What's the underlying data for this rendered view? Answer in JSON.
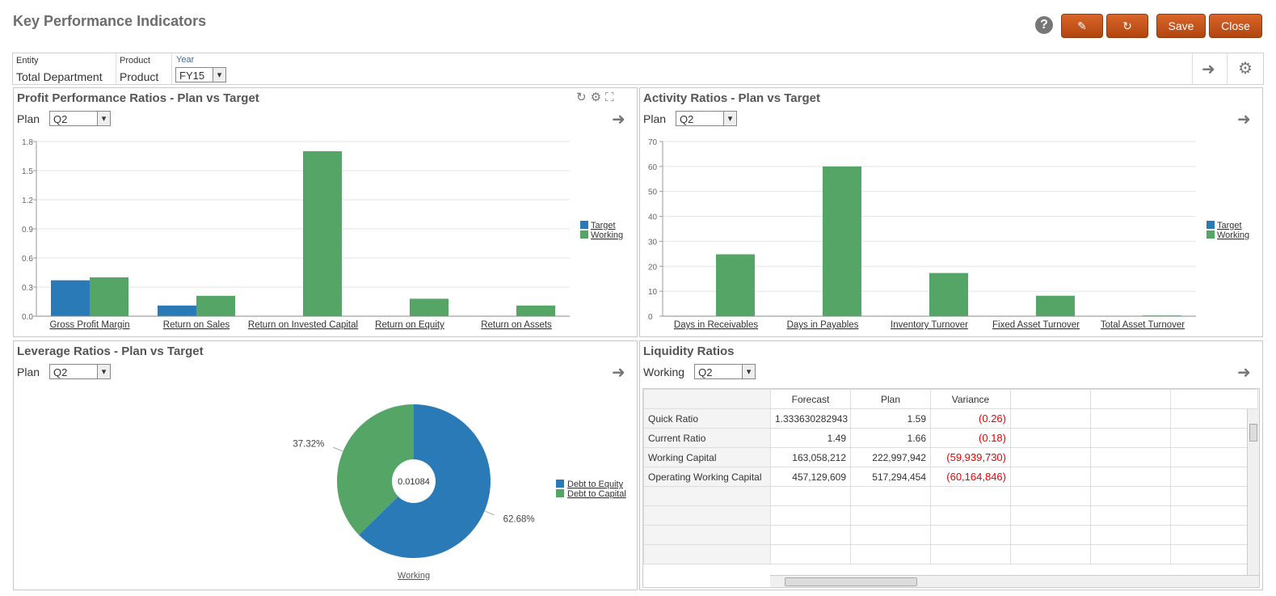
{
  "header": {
    "title": "Key Performance Indicators",
    "buttons": [
      "Save",
      "Close"
    ]
  },
  "pov": [
    {
      "label": "Entity",
      "value": "Total Department"
    },
    {
      "label": "Product",
      "value": "Product"
    },
    {
      "label": "Year",
      "value": "FY15"
    }
  ],
  "chart_data": [
    {
      "type": "bar",
      "title": "Profit Performance Ratios - Plan vs Target",
      "selector_label": "Plan",
      "selector_value": "Q2",
      "categories": [
        "Gross Profit Margin",
        "Return on Sales",
        "Return on Invested Capital",
        "Return on Equity",
        "Return on Assets"
      ],
      "series": [
        {
          "name": "Target",
          "color": "#2a7ab8",
          "values": [
            0.37,
            0.11,
            null,
            null,
            null
          ]
        },
        {
          "name": "Working",
          "color": "#55a666",
          "values": [
            0.4,
            0.21,
            1.7,
            0.18,
            0.11
          ]
        }
      ],
      "ylim": [
        0,
        1.8
      ],
      "yticks": [
        {
          "value": 0,
          "label": "0.0"
        },
        0.3,
        0.6,
        0.9,
        1.2,
        1.5,
        1.8
      ],
      "grid": true
    },
    {
      "type": "bar",
      "title": "Activity Ratios - Plan vs Target",
      "selector_label": "Plan",
      "selector_value": "Q2",
      "categories": [
        "Days in Receivables",
        "Days in Payables",
        "Inventory Turnover",
        "Fixed Asset Turnover",
        "Total Asset Turnover"
      ],
      "series": [
        {
          "name": "Target",
          "color": "#2a7ab8",
          "values": [
            null,
            null,
            null,
            null,
            null
          ]
        },
        {
          "name": "Working",
          "color": "#55a666",
          "values": [
            24.8,
            60,
            17.3,
            8.2,
            0.3
          ]
        }
      ],
      "ylim": [
        0,
        70
      ],
      "yticks": [
        0,
        10,
        20,
        30,
        40,
        50,
        60,
        70
      ],
      "grid": true
    },
    {
      "type": "pie",
      "title": "Leverage Ratios - Plan vs Target",
      "selector_label": "Plan",
      "selector_value": "Q2",
      "categories": [
        "Debt to Equity",
        "Debt to Capital"
      ],
      "values": [
        62.68,
        37.32
      ],
      "value_labels": [
        "62.68%",
        "37.32%"
      ],
      "colors": [
        "#2a7ab8",
        "#55a666"
      ],
      "center_label": "0.01084",
      "x_label": "Working"
    }
  ],
  "table": {
    "title": "Liquidity Ratios",
    "selector_label": "Working",
    "selector_value": "Q2",
    "columns": [
      "Forecast",
      "Plan",
      "Variance"
    ],
    "rows": [
      [
        "Quick Ratio",
        "1.333630282943",
        "1.59",
        "(0.26)"
      ],
      [
        "Current Ratio",
        "1.49",
        "1.66",
        "(0.18)"
      ],
      [
        "Working Capital",
        "163,058,212",
        "222,997,942",
        "(59,939,730)"
      ],
      [
        "Operating Working Capital",
        "457,129,609",
        "517,294,454",
        "(60,164,846)"
      ]
    ]
  }
}
